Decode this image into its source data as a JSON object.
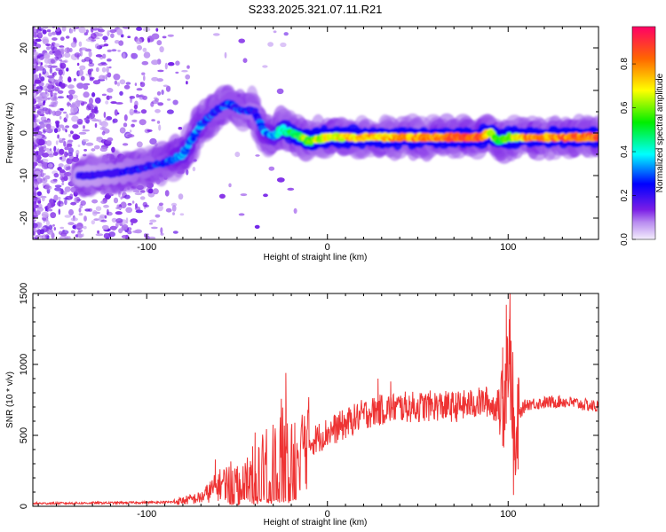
{
  "title": "S233.2025.321.07.11.R21",
  "chart_data": [
    {
      "type": "heatmap",
      "title": "S233.2025.321.07.11.R21",
      "xlabel": "Height of straight line (km)",
      "ylabel": "Frequency (Hz)",
      "xlim": [
        -163,
        150
      ],
      "ylim": [
        -25,
        25
      ],
      "xticks": [
        -100,
        0,
        100
      ],
      "yticks": [
        -20,
        -10,
        0,
        10,
        20
      ],
      "colorbar": {
        "label": "Normalized spectral amplitude",
        "range": [
          0,
          0.97
        ],
        "ticks": [
          0.0,
          0.2,
          0.4,
          0.6,
          0.8
        ]
      },
      "ridge": {
        "x": [
          -130,
          -110,
          -90,
          -80,
          -70,
          -62,
          -55,
          -48,
          -40,
          -35,
          -30,
          -25,
          -20,
          -15,
          -10,
          0,
          20,
          50,
          85,
          90,
          95,
          100,
          110,
          150
        ],
        "y": [
          -10,
          -9,
          -7,
          -5,
          2,
          5,
          7,
          5.5,
          5,
          0,
          -1,
          1,
          0,
          -1,
          -2,
          -1,
          -1,
          -1,
          -1,
          0,
          -2,
          -1,
          -1,
          -1
        ],
        "amplitude": [
          0.15,
          0.2,
          0.25,
          0.35,
          0.3,
          0.25,
          0.25,
          0.25,
          0.2,
          0.3,
          0.35,
          0.45,
          0.5,
          0.55,
          0.6,
          0.7,
          0.75,
          0.8,
          0.9,
          0.7,
          0.5,
          0.6,
          0.8,
          0.85
        ]
      }
    },
    {
      "type": "line",
      "xlabel": "Height of straight line (km)",
      "ylabel": "SNR (10 * v/v)",
      "xlim": [
        -163,
        150
      ],
      "ylim": [
        0,
        1500
      ],
      "xticks": [
        -100,
        0,
        100
      ],
      "yticks": [
        0,
        500,
        1000,
        1500
      ],
      "series": [
        {
          "name": "SNR",
          "color": "#ee3333",
          "envelope_x": [
            -163,
            -110,
            -85,
            -70,
            -60,
            -50,
            -40,
            -30,
            -25,
            -20,
            -10,
            0,
            10,
            20,
            30,
            40,
            50,
            60,
            70,
            80,
            88,
            92,
            95,
            98,
            100,
            102,
            104,
            106,
            110,
            120,
            130,
            150
          ],
          "envelope_y": [
            20,
            25,
            30,
            60,
            150,
            200,
            250,
            350,
            450,
            380,
            450,
            520,
            580,
            650,
            680,
            700,
            700,
            710,
            700,
            720,
            740,
            700,
            720,
            800,
            1100,
            900,
            250,
            650,
            720,
            730,
            740,
            700
          ],
          "spikes": [
            {
              "x": -62,
              "y": 330
            },
            {
              "x": -23,
              "y": 940
            },
            {
              "x": -40,
              "y": 520
            },
            {
              "x": 28,
              "y": 900
            },
            {
              "x": 35,
              "y": 880
            },
            {
              "x": 97,
              "y": 1120
            },
            {
              "x": 99,
              "y": 1420
            },
            {
              "x": 101,
              "y": 1500
            },
            {
              "x": 103,
              "y": 80
            }
          ]
        }
      ]
    }
  ]
}
